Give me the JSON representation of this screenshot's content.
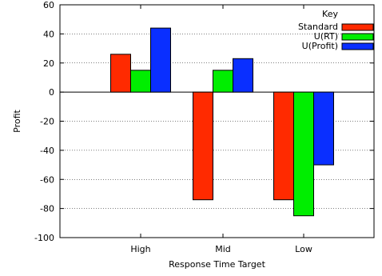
{
  "chart_data": {
    "type": "bar",
    "categories": [
      "High",
      "Mid",
      "Low"
    ],
    "series": [
      {
        "name": "Standard",
        "values": [
          26,
          -74,
          -74
        ],
        "color": "#ff2a00"
      },
      {
        "name": "U(RT)",
        "values": [
          15,
          15,
          -85
        ],
        "color": "#00ee00"
      },
      {
        "name": "U(Profit)",
        "values": [
          44,
          23,
          -50
        ],
        "color": "#0a2fff"
      }
    ],
    "xlabel": "Response Time Target",
    "ylabel": "Profit",
    "ylim": [
      -100,
      60
    ],
    "yticks": [
      -100,
      -80,
      -60,
      -40,
      -20,
      0,
      20,
      40,
      60
    ],
    "legend_title": "Key",
    "legend_position": "top-right",
    "grid": "horizontal-dotted"
  }
}
